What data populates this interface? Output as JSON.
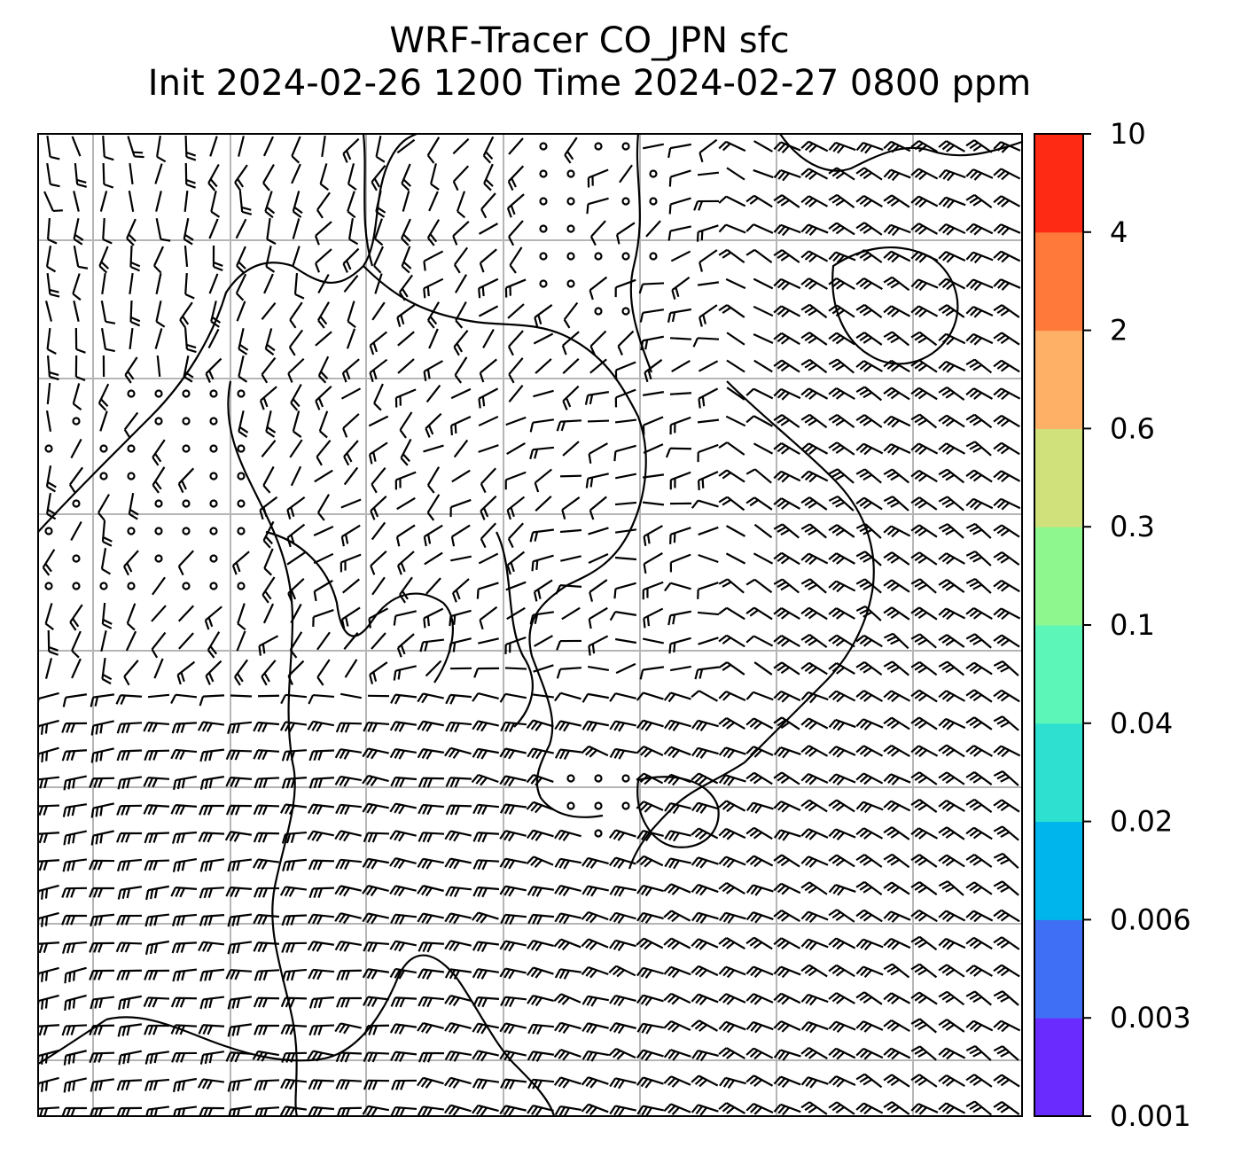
{
  "title": {
    "line1": "WRF-Tracer CO_JPN sfc",
    "line2": "Init 2024-02-26 1200 Time 2024-02-27 0800 ppm"
  },
  "colorbar": {
    "levels": [
      "0.001",
      "0.003",
      "0.006",
      "0.02",
      "0.04",
      "0.1",
      "0.3",
      "0.6",
      "2",
      "4",
      "10"
    ],
    "colors": [
      "#6a2bff",
      "#3f6ff5",
      "#00b4ec",
      "#2ee0d0",
      "#5cf7b8",
      "#8ef78e",
      "#d0e07a",
      "#fdb066",
      "#ff7a3a",
      "#ff2a14"
    ]
  },
  "map": {
    "style": "wind barbs over coastlines with graticule",
    "gridlines": true
  }
}
